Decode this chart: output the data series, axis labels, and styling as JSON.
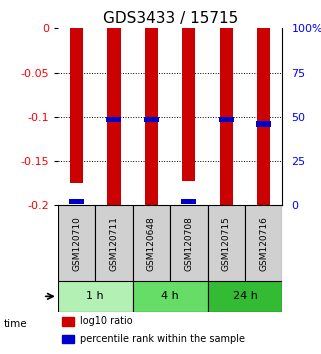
{
  "title": "GDS3433 / 15715",
  "samples": [
    "GSM120710",
    "GSM120711",
    "GSM120648",
    "GSM120708",
    "GSM120715",
    "GSM120716"
  ],
  "groups": [
    {
      "label": "1 h",
      "indices": [
        0,
        1
      ],
      "color": "#b3f0b3"
    },
    {
      "label": "4 h",
      "indices": [
        2,
        3
      ],
      "color": "#66dd66"
    },
    {
      "label": "24 h",
      "indices": [
        4,
        5
      ],
      "color": "#33bb33"
    }
  ],
  "log10_ratio": [
    -0.175,
    -0.2,
    -0.2,
    -0.172,
    -0.2,
    -0.2
  ],
  "log10_top": [
    0.0,
    0.0,
    0.0,
    0.0,
    0.0,
    0.0
  ],
  "percentile_rank": [
    0.02,
    0.485,
    0.485,
    0.02,
    0.485,
    0.46
  ],
  "ylim": [
    -0.2,
    0.0
  ],
  "yticks_left": [
    0,
    -0.05,
    -0.1,
    -0.15,
    -0.2
  ],
  "yticks_right": [
    100,
    75,
    50,
    25,
    0
  ],
  "bar_color": "#cc0000",
  "pct_color": "#0000cc",
  "bar_width": 0.35,
  "time_label": "time",
  "legend_red": "log10 ratio",
  "legend_blue": "percentile rank within the sample",
  "title_fontsize": 11,
  "label_fontsize": 8,
  "tick_fontsize": 8
}
